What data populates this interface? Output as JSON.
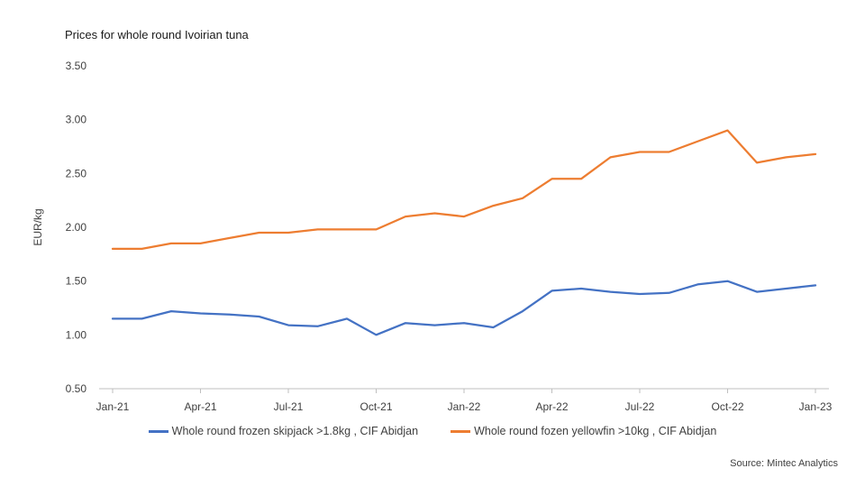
{
  "chart_data": {
    "type": "line",
    "title": "Prices for whole round Ivoirian tuna",
    "ylabel": "EUR/kg",
    "xlabel": "",
    "ylim": [
      0.5,
      3.5
    ],
    "yticks": [
      "0.50",
      "1.00",
      "1.50",
      "2.00",
      "2.50",
      "3.00",
      "3.50"
    ],
    "yticks_values": [
      0.5,
      1.0,
      1.5,
      2.0,
      2.5,
      3.0,
      3.5
    ],
    "x": [
      "Jan-21",
      "Feb-21",
      "Mar-21",
      "Apr-21",
      "May-21",
      "Jun-21",
      "Jul-21",
      "Aug-21",
      "Sep-21",
      "Oct-21",
      "Nov-21",
      "Dec-21",
      "Jan-22",
      "Feb-22",
      "Mar-22",
      "Apr-22",
      "May-22",
      "Jun-22",
      "Jul-22",
      "Aug-22",
      "Sep-22",
      "Oct-22",
      "Nov-22",
      "Dec-22",
      "Jan-23"
    ],
    "xtick_labels": [
      "Jan-21",
      "Apr-21",
      "Jul-21",
      "Oct-21",
      "Jan-22",
      "Apr-22",
      "Jul-22",
      "Oct-22",
      "Jan-23"
    ],
    "grid": "horizontal-none",
    "legend_position": "bottom",
    "series": [
      {
        "name": "Whole round frozen skipjack >1.8kg , CIF Abidjan",
        "color": "#4472c4",
        "values": [
          1.15,
          1.15,
          1.22,
          1.2,
          1.19,
          1.17,
          1.09,
          1.08,
          1.15,
          1.0,
          1.11,
          1.09,
          1.11,
          1.07,
          1.22,
          1.41,
          1.43,
          1.4,
          1.38,
          1.39,
          1.47,
          1.5,
          1.4,
          1.43,
          1.46
        ]
      },
      {
        "name": "Whole round fozen yellowfin >10kg , CIF Abidjan",
        "color": "#ed7d31",
        "values": [
          1.8,
          1.8,
          1.85,
          1.85,
          1.9,
          1.95,
          1.95,
          1.98,
          1.98,
          1.98,
          2.1,
          2.13,
          2.1,
          2.2,
          2.27,
          2.45,
          2.45,
          2.65,
          2.7,
          2.7,
          2.8,
          2.9,
          2.6,
          2.65,
          2.68
        ]
      }
    ]
  },
  "source": "Source: Mintec Analytics"
}
